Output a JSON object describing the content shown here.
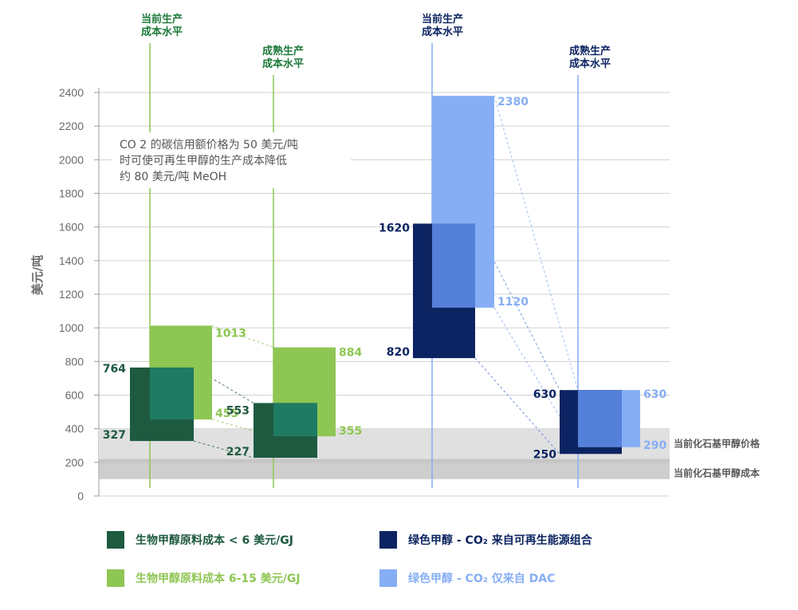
{
  "chart_data": {
    "type": "bar",
    "ylabel": "美元/吨",
    "ylim": [
      0,
      2400
    ],
    "yticks": [
      "0",
      "200",
      "400",
      "600",
      "800",
      "1000",
      "1200",
      "1400",
      "1600",
      "1800",
      "2000",
      "2200",
      "2400"
    ],
    "colors": {
      "bio_low": "#1e5a40",
      "bio_low_overlap": "#1f7c63",
      "bio_high": "#8ec653",
      "green_combo": "#0c2461",
      "green_overlap": "#5580da",
      "green_dac": "#86aef5",
      "band_fill": "#e0e0e0",
      "band_line": "#bdbdbd",
      "guide_green": "#8ec653",
      "guide_blue": "#86aef5"
    },
    "groups": [
      {
        "header": [
          "当前生产",
          "成本水平"
        ],
        "header_color": "#1e7a3a"
      },
      {
        "header": [
          "成熟生产",
          "成本水平"
        ],
        "header_color": "#1e7a3a"
      },
      {
        "header": [
          "当前生产",
          "成本水平"
        ],
        "header_color": "#0c2461"
      },
      {
        "header": [
          "成熟生产",
          "成本水平"
        ],
        "header_color": "#0c2461"
      }
    ],
    "series": [
      {
        "name": "生物甲醇原料成本 < 6 美元/GJ",
        "ranges": [
          {
            "group": 0,
            "low": 327,
            "high": 764,
            "low_label": "327",
            "high_label": "764"
          },
          {
            "group": 1,
            "low": 227,
            "high": 553,
            "low_label": "227",
            "high_label": "553"
          }
        ]
      },
      {
        "name": "生物甲醇原料成本 6-15 美元/GJ",
        "ranges": [
          {
            "group": 0,
            "low": 455,
            "high": 1013,
            "low_label": "455",
            "high_label": "1013"
          },
          {
            "group": 1,
            "low": 355,
            "high": 884,
            "low_label": "355",
            "high_label": "884"
          }
        ]
      },
      {
        "name": "绿色甲醇 - CO₂ 来自可再生能源组合",
        "ranges": [
          {
            "group": 2,
            "low": 820,
            "high": 1620,
            "low_label": "820",
            "high_label": "1620"
          },
          {
            "group": 3,
            "low": 250,
            "high": 630,
            "low_label": "250",
            "high_label": "630"
          }
        ]
      },
      {
        "name": "绿色甲醇 - CO₂ 仅来自 DAC",
        "ranges": [
          {
            "group": 2,
            "low": 1120,
            "high": 2380,
            "low_label": "1120",
            "high_label": "2380"
          },
          {
            "group": 3,
            "low": 290,
            "high": 630,
            "low_label": "290",
            "high_label": "630"
          }
        ]
      }
    ],
    "reference_bands": [
      {
        "label": "当前化石基甲醇价格",
        "low": 200,
        "high": 400
      },
      {
        "label": "当前化石基甲醇成本",
        "low": 100,
        "high": 220
      }
    ],
    "annotation": {
      "lines": [
        "CO 2 的碳信用额价格为 50 美元/吨",
        "时可使可再生甲醇的生产成本降低",
        "约 80 美元/吨 MeOH"
      ]
    }
  },
  "legend": [
    {
      "label": "生物甲醇原料成本 < 6 美元/GJ",
      "color": "#1e5a40",
      "text_color": "#1e5a40"
    },
    {
      "label": "绿色甲醇 - CO₂ 来自可再生能源组合",
      "color": "#0c2461",
      "text_color": "#0c2461"
    },
    {
      "label": "生物甲醇原料成本 6-15 美元/GJ",
      "color": "#8ec653",
      "text_color": "#8ec653"
    },
    {
      "label": "绿色甲醇 - CO₂ 仅来自 DAC",
      "color": "#86aef5",
      "text_color": "#86aef5"
    }
  ]
}
